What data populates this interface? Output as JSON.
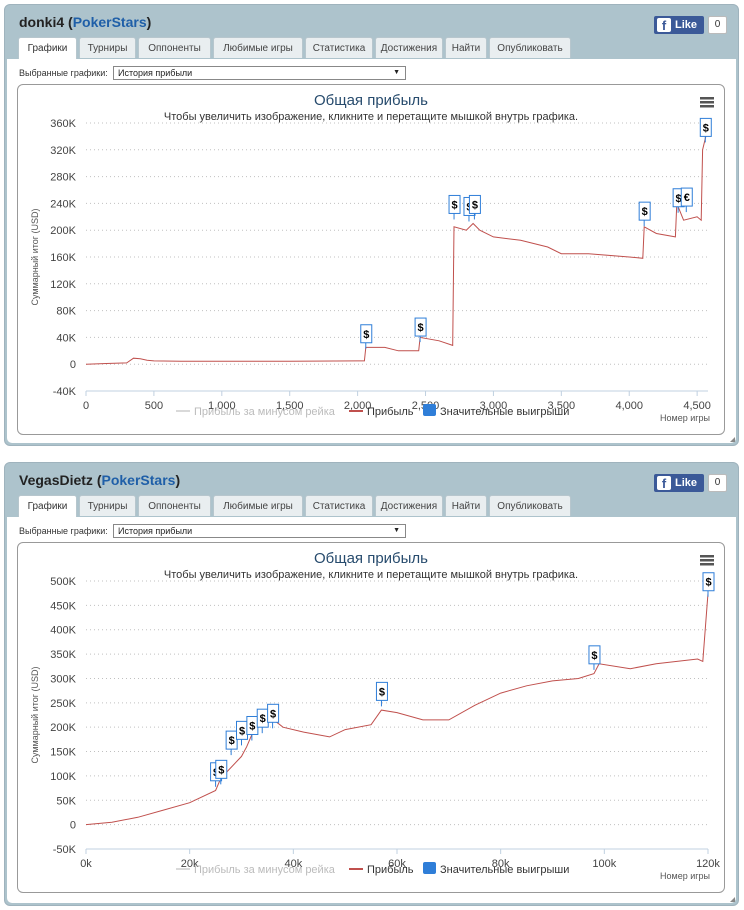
{
  "panels": [
    {
      "player": "donki4",
      "site": "PokerStars",
      "fb_like": "Like",
      "fb_count": "0",
      "tabs": [
        "Графики",
        "Турниры",
        "Оппоненты",
        "Любимые игры",
        "Статистика",
        "Достижения",
        "Найти",
        "Опубликовать"
      ],
      "select_label": "Выбранные графики:",
      "select_value": "История прибыли",
      "chart": {
        "title": "Общая прибыль",
        "subtitle": "Чтобы увеличить изображение, кликните и перетащите мышкой внутрь графика.",
        "ylabel": "Суммарный итог (USD)",
        "xlabel": "Номер игры",
        "legend": [
          "Прибыль за минусом рейка",
          "Прибыль",
          "Значительные выигрыши"
        ]
      }
    },
    {
      "player": "VegasDietz",
      "site": "PokerStars",
      "fb_like": "Like",
      "fb_count": "0",
      "tabs": [
        "Графики",
        "Турниры",
        "Оппоненты",
        "Любимые игры",
        "Статистика",
        "Достижения",
        "Найти",
        "Опубликовать"
      ],
      "select_label": "Выбранные графики:",
      "select_value": "История прибыли",
      "chart": {
        "title": "Общая прибыль",
        "subtitle": "Чтобы увеличить изображение, кликните и перетащите мышкой внутрь графика.",
        "ylabel": "Суммарный итог (USD)",
        "xlabel": "Номер игры",
        "legend": [
          "Прибыль за минусом рейка",
          "Прибыль",
          "Значительные выигрыши"
        ]
      }
    }
  ],
  "colors": {
    "profit_line": "#c0504d",
    "rake_line": "#d9d9d9",
    "big_wins": "#2f7ed8",
    "panel_bg": "#adc3cc",
    "site_link": "#1f5fa8"
  },
  "chart_data": [
    {
      "type": "line",
      "ytick_labels": [
        "-40K",
        "0",
        "40K",
        "80K",
        "120K",
        "160K",
        "200K",
        "240K",
        "280K",
        "320K",
        "360K"
      ],
      "xtick_labels": [
        "0",
        "500",
        "1,000",
        "1,500",
        "2,000",
        "2,500",
        "3,000",
        "3,500",
        "4,000",
        "4,500"
      ],
      "ylim": [
        -40000,
        360000
      ],
      "xlim": [
        0,
        4580
      ],
      "series": [
        {
          "name": "Прибыль",
          "points": [
            [
              0,
              0
            ],
            [
              150,
              1000
            ],
            [
              300,
              2000
            ],
            [
              350,
              9000
            ],
            [
              400,
              8000
            ],
            [
              450,
              6000
            ],
            [
              500,
              5000
            ],
            [
              700,
              4500
            ],
            [
              1000,
              4500
            ],
            [
              1500,
              4500
            ],
            [
              2000,
              5000
            ],
            [
              2050,
              5000
            ],
            [
              2060,
              25000
            ],
            [
              2200,
              25000
            ],
            [
              2300,
              20000
            ],
            [
              2450,
              20000
            ],
            [
              2460,
              40000
            ],
            [
              2600,
              35000
            ],
            [
              2700,
              28000
            ],
            [
              2710,
              205000
            ],
            [
              2800,
              200000
            ],
            [
              2850,
              210000
            ],
            [
              2900,
              200000
            ],
            [
              3000,
              190000
            ],
            [
              3200,
              185000
            ],
            [
              3400,
              175000
            ],
            [
              3500,
              165000
            ],
            [
              3700,
              165000
            ],
            [
              4000,
              160000
            ],
            [
              4100,
              158000
            ],
            [
              4110,
              205000
            ],
            [
              4200,
              195000
            ],
            [
              4340,
              190000
            ],
            [
              4350,
              240000
            ],
            [
              4400,
              215000
            ],
            [
              4500,
              220000
            ],
            [
              4530,
              215000
            ],
            [
              4540,
              320000
            ],
            [
              4570,
              345000
            ]
          ]
        },
        {
          "name": "Прибыль за минусом рейка",
          "points": []
        }
      ],
      "big_wins": [
        [
          2060,
          "$",
          32000
        ],
        [
          2460,
          "$",
          42000
        ],
        [
          2710,
          "$",
          225000
        ],
        [
          2820,
          "$",
          222000
        ],
        [
          2860,
          "$",
          225000
        ],
        [
          4110,
          "$",
          215000
        ],
        [
          4360,
          "$",
          235000
        ],
        [
          4420,
          "€",
          236000
        ],
        [
          4560,
          "$",
          340000
        ]
      ]
    },
    {
      "type": "line",
      "ytick_labels": [
        "-50K",
        "0",
        "50K",
        "100K",
        "150K",
        "200K",
        "250K",
        "300K",
        "350K",
        "400K",
        "450K",
        "500K"
      ],
      "xtick_labels": [
        "0k",
        "20k",
        "40k",
        "60k",
        "80k",
        "100k",
        "120k"
      ],
      "ylim": [
        -50000,
        500000
      ],
      "xlim": [
        0,
        120000
      ],
      "series": [
        {
          "name": "Прибыль",
          "points": [
            [
              0,
              0
            ],
            [
              5000,
              5000
            ],
            [
              10000,
              15000
            ],
            [
              15000,
              30000
            ],
            [
              20000,
              45000
            ],
            [
              25000,
              70000
            ],
            [
              26000,
              95000
            ],
            [
              30000,
              140000
            ],
            [
              31000,
              160000
            ],
            [
              32000,
              185000
            ],
            [
              33000,
              200000
            ],
            [
              35000,
              225000
            ],
            [
              38000,
              200000
            ],
            [
              42000,
              190000
            ],
            [
              47000,
              180000
            ],
            [
              50000,
              195000
            ],
            [
              55000,
              205000
            ],
            [
              57000,
              235000
            ],
            [
              60000,
              230000
            ],
            [
              65000,
              215000
            ],
            [
              70000,
              215000
            ],
            [
              75000,
              245000
            ],
            [
              80000,
              270000
            ],
            [
              85000,
              285000
            ],
            [
              90000,
              295000
            ],
            [
              95000,
              300000
            ],
            [
              98000,
              310000
            ],
            [
              99000,
              330000
            ],
            [
              105000,
              320000
            ],
            [
              110000,
              330000
            ],
            [
              118000,
              340000
            ],
            [
              119000,
              335000
            ],
            [
              120000,
              475000
            ]
          ]
        },
        {
          "name": "Прибыль за минусом рейка",
          "points": []
        }
      ],
      "big_wins": [
        [
          25000,
          "$",
          90000
        ],
        [
          26000,
          "$",
          95000
        ],
        [
          28000,
          "$",
          155000
        ],
        [
          30000,
          "$",
          175000
        ],
        [
          32000,
          "$",
          185000
        ],
        [
          34000,
          "$",
          200000
        ],
        [
          36000,
          "$",
          210000
        ],
        [
          57000,
          "$",
          255000
        ],
        [
          98000,
          "$",
          330000
        ],
        [
          120000,
          "$",
          480000
        ]
      ]
    }
  ]
}
